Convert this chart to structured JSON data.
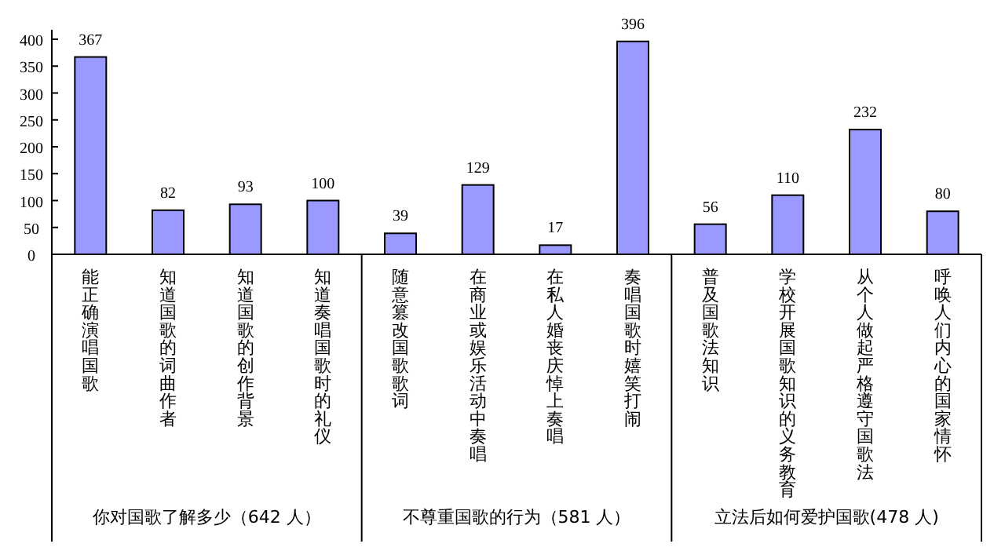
{
  "chart_data": {
    "type": "bar",
    "categories": [
      "能正确演唱国歌",
      "知道国歌的词曲作者",
      "知道国歌的创作背景",
      "知道奏唱国歌时的礼仪",
      "随意篡改国歌歌词",
      "在商业或娱乐活动中奏唱",
      "在私人婚丧庆悼上奏唱",
      "奏唱国歌时嬉笑打闹",
      "普及国歌法知识",
      "学校开展国歌知识的义务教育",
      "从个人做起严格遵守国歌法",
      "呼唤人们内心的国家情怀"
    ],
    "values": [
      367,
      82,
      93,
      100,
      39,
      129,
      17,
      396,
      56,
      110,
      232,
      80
    ],
    "color": "#9999ff",
    "ylim": [
      0,
      400
    ],
    "yticks": [
      0,
      50,
      100,
      150,
      200,
      250,
      300,
      350,
      400
    ],
    "data_labels": true,
    "grid": false,
    "annotations": [
      "你对国歌了解多少（642 人）",
      "不尊重国歌的行为（581 人）",
      "立法后如何爱护国歌(478 人)"
    ]
  }
}
